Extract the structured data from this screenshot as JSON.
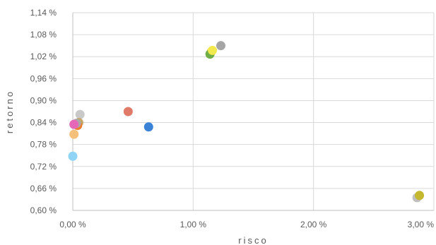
{
  "chart_data": {
    "type": "scatter",
    "xlabel": "risco",
    "ylabel": "retorno",
    "xlim": [
      0,
      3.0
    ],
    "ylim": [
      0.6,
      1.14
    ],
    "x_ticks": [
      "0,00 %",
      "1,00 %",
      "2,00 %",
      "3,00 %"
    ],
    "y_ticks": [
      "0,60 %",
      "0,66 %",
      "0,72 %",
      "0,78 %",
      "0,84 %",
      "0,90 %",
      "0,96 %",
      "1,02 %",
      "1,08 %",
      "1,14 %"
    ],
    "grid": true,
    "legend": "none",
    "points": [
      {
        "x": 1.23,
        "y": 1.05,
        "color": "#a5a5a5"
      },
      {
        "x": 1.15,
        "y": 1.033,
        "color": "#ffd966"
      },
      {
        "x": 1.14,
        "y": 1.027,
        "color": "#70ad47"
      },
      {
        "x": 1.16,
        "y": 1.037,
        "color": "#f2e94e"
      },
      {
        "x": 0.46,
        "y": 0.87,
        "color": "#e07b6a"
      },
      {
        "x": 0.63,
        "y": 0.828,
        "color": "#3a83d6"
      },
      {
        "x": 0.06,
        "y": 0.862,
        "color": "#c9c9c9"
      },
      {
        "x": 0.05,
        "y": 0.84,
        "color": "#c5a96b"
      },
      {
        "x": 0.04,
        "y": 0.832,
        "color": "#ed7d31"
      },
      {
        "x": 0.03,
        "y": 0.838,
        "color": "#a9a9a9"
      },
      {
        "x": 0.01,
        "y": 0.835,
        "color": "#e667b7"
      },
      {
        "x": 0.01,
        "y": 0.808,
        "color": "#f4c07a"
      },
      {
        "x": 0.0,
        "y": 0.748,
        "color": "#8fd3f5"
      },
      {
        "x": 2.86,
        "y": 0.635,
        "color": "#bfbfbf"
      },
      {
        "x": 2.88,
        "y": 0.641,
        "color": "#c4b830"
      }
    ]
  }
}
